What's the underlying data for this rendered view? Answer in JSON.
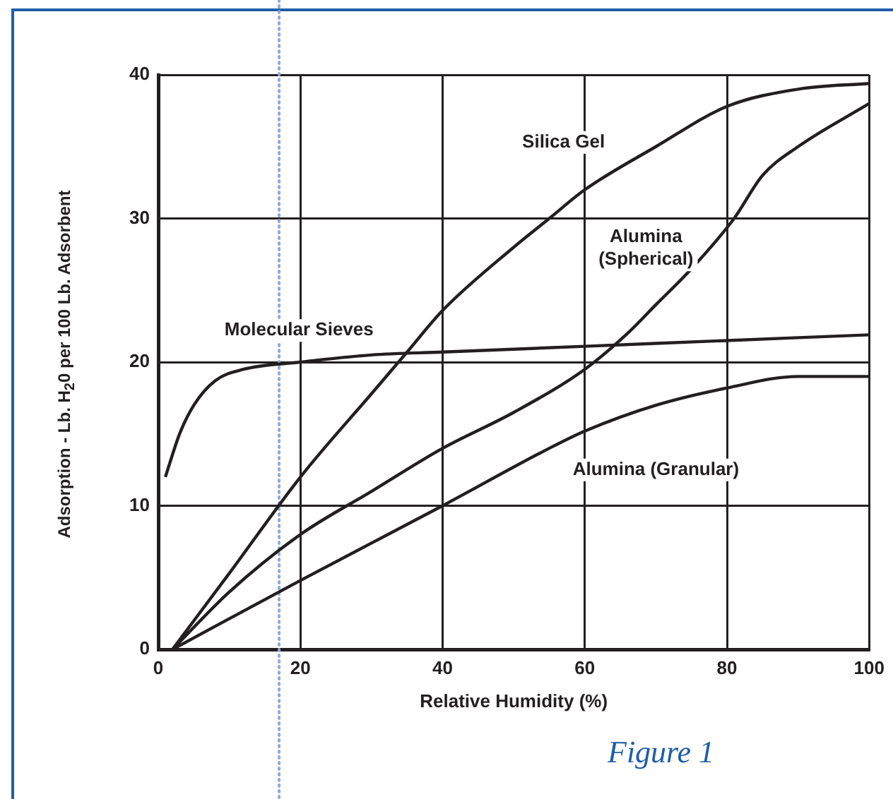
{
  "chart_data": {
    "type": "line",
    "xlabel": "Relative Humidity (%)",
    "ylabel": "Adsorption - Lb. H$_{2}$0 per 100 Lb. Adsorbent",
    "annotations": [
      "Figure 1"
    ],
    "xlim": [
      0,
      100
    ],
    "xticks": [
      0,
      20,
      40,
      60,
      80,
      100
    ],
    "ylim": [
      0,
      40
    ],
    "yticks": [
      0,
      10,
      20,
      30,
      40
    ],
    "grid": true,
    "legend": false,
    "marker": "none",
    "line_style": "solid",
    "ref_lines": [
      {
        "axis": "x",
        "value": 17,
        "color": "#8fa8d8",
        "line_style": "dotted"
      }
    ],
    "series": [
      {
        "name": "Silica Gel",
        "color": "#231f20",
        "x": [
          2,
          10,
          20,
          30,
          35,
          40,
          50,
          55,
          60,
          70,
          80,
          90,
          100
        ],
        "values": [
          0,
          5.3,
          12,
          17.8,
          20.7,
          23.6,
          28,
          30,
          32,
          35,
          37.8,
          39,
          39.4
        ]
      },
      {
        "name": "Alumina (Spherical)",
        "color": "#231f20",
        "x": [
          2,
          10,
          20,
          30,
          40,
          50,
          60,
          66,
          70,
          75,
          81,
          85,
          90,
          100
        ],
        "values": [
          0,
          4,
          8,
          11,
          14,
          16.5,
          19.5,
          22,
          24,
          26.5,
          30,
          33,
          35,
          38
        ]
      },
      {
        "name": "Molecular Sieves",
        "color": "#231f20",
        "x": [
          1,
          3,
          5,
          8,
          12,
          20,
          30,
          40,
          60,
          80,
          100
        ],
        "values": [
          12,
          15,
          17,
          18.7,
          19.5,
          20,
          20.5,
          20.7,
          21.1,
          21.5,
          21.9
        ]
      },
      {
        "name": "Alumina (Granular)",
        "color": "#231f20",
        "x": [
          2,
          20,
          40,
          55,
          60,
          70,
          80,
          90,
          100
        ],
        "values": [
          0,
          4.8,
          10,
          14,
          15.2,
          17,
          18.2,
          19,
          19
        ]
      }
    ]
  }
}
